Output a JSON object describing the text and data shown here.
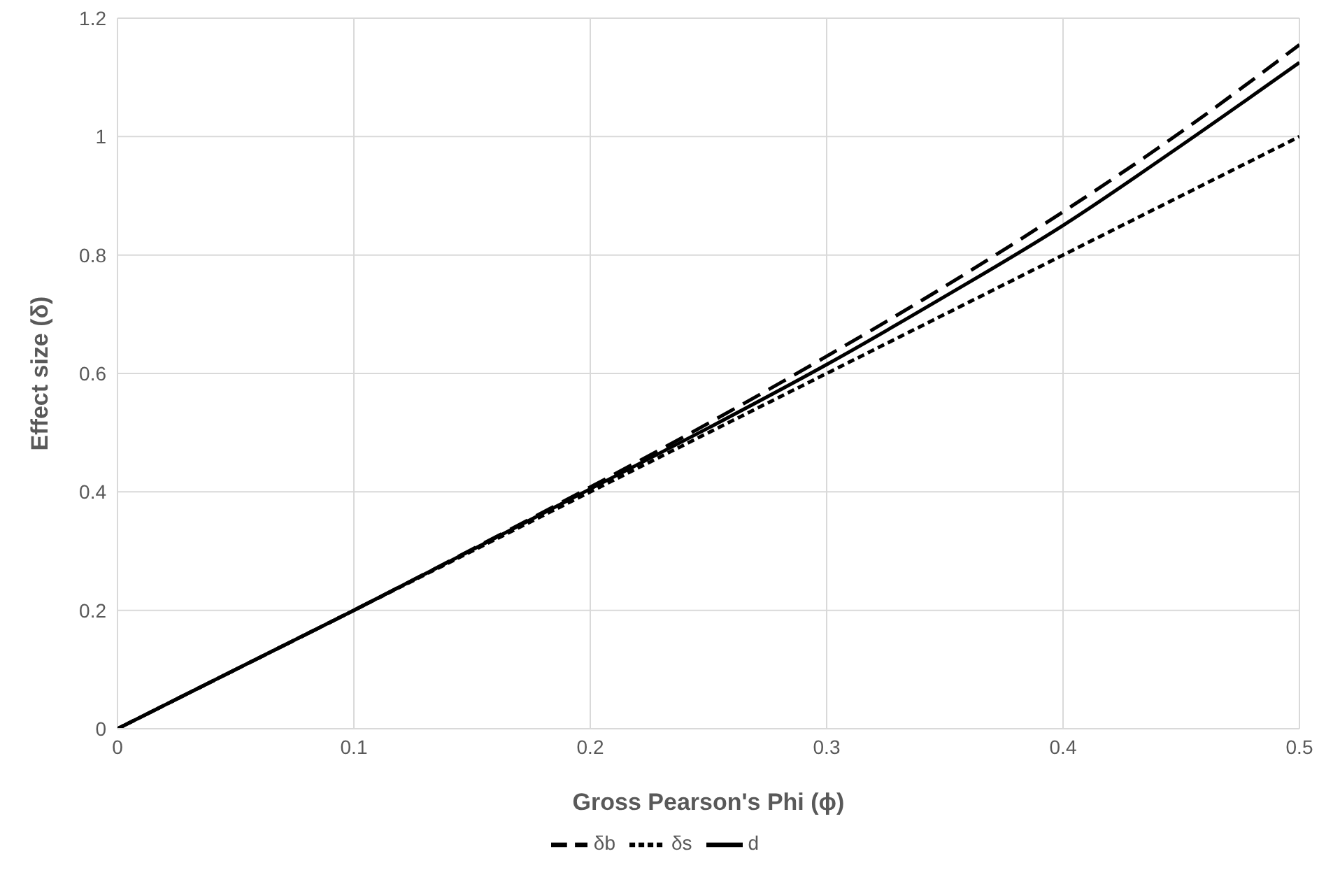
{
  "chart_data": {
    "type": "line",
    "xlabel": "Gross Pearson's Phi (ϕ)",
    "ylabel": "Effect size (δ)",
    "x": [
      0,
      0.05,
      0.1,
      0.15,
      0.2,
      0.25,
      0.3,
      0.35,
      0.4,
      0.45,
      0.5
    ],
    "series": [
      {
        "name": "δb",
        "color": "#000000",
        "line_style": "dashed",
        "values": [
          0,
          0.1,
          0.2,
          0.303,
          0.408,
          0.516,
          0.629,
          0.747,
          0.873,
          1.008,
          1.155
        ]
      },
      {
        "name": "δs",
        "color": "#000000",
        "line_style": "dotted",
        "values": [
          0,
          0.1,
          0.2,
          0.3,
          0.4,
          0.5,
          0.6,
          0.7,
          0.8,
          0.9,
          1.0
        ]
      },
      {
        "name": "d",
        "color": "#000000",
        "line_style": "solid",
        "values": [
          0,
          0.1,
          0.2,
          0.302,
          0.405,
          0.508,
          0.615,
          0.73,
          0.85,
          0.985,
          1.125
        ]
      }
    ],
    "xlim": [
      0,
      0.5
    ],
    "xticks": [
      0,
      0.1,
      0.2,
      0.3,
      0.4,
      0.5
    ],
    "ylim": [
      0,
      1.2
    ],
    "yticks": [
      0,
      0.2,
      0.4,
      0.6,
      0.8,
      1,
      1.2
    ],
    "grid": true,
    "legend": "bottom",
    "marker": "none"
  }
}
